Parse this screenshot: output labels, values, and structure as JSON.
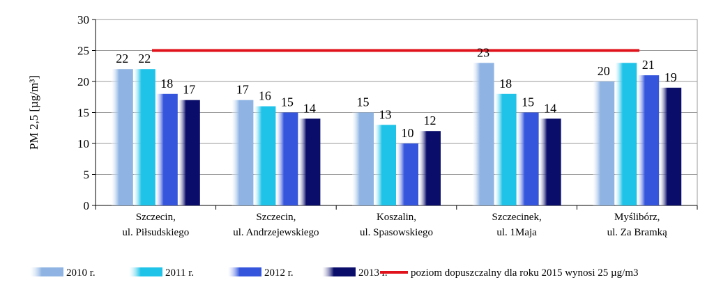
{
  "chart_data": {
    "type": "bar",
    "ylabel": "PM 2,5 [µg/m³]",
    "ylim": [
      0,
      30
    ],
    "yticks": [
      0,
      5,
      10,
      15,
      20,
      25,
      30
    ],
    "grid": true,
    "legend_position": "bottom",
    "categories": [
      [
        "Szczecin,",
        "ul. Piłsudskiego"
      ],
      [
        "Szczecin,",
        "ul. Andrzejewskiego"
      ],
      [
        "Koszalin,",
        "ul. Spasowskiego"
      ],
      [
        "Szczecinek,",
        "ul. 1Maja"
      ],
      [
        "Myślibórz,",
        "ul. Za Bramką"
      ]
    ],
    "series": [
      {
        "name": "2010 r.",
        "values": [
          22,
          17,
          15,
          23,
          20
        ],
        "color": "#8fb4e3"
      },
      {
        "name": "2011 r.",
        "values": [
          22,
          16,
          13,
          18,
          23
        ],
        "color": "#1fc3e8"
      },
      {
        "name": "2012 r.",
        "values": [
          18,
          15,
          10,
          15,
          21
        ],
        "color": "#3455dc"
      },
      {
        "name": "2013 r.",
        "values": [
          17,
          14,
          12,
          14,
          19
        ],
        "color": "#0a0d6a"
      }
    ],
    "data_labels": [
      [
        "22",
        "22",
        "18",
        "17"
      ],
      [
        "17",
        "16",
        "15",
        "14"
      ],
      [
        "15",
        "13",
        "10",
        "12"
      ],
      [
        "23",
        "18",
        "15",
        "14"
      ],
      [
        "20",
        "",
        "21",
        "19"
      ]
    ],
    "reference_line": {
      "value": 25,
      "label": "poziom dopuszczalny dla roku 2015 wynosi 25 µg/m3",
      "color": "#e0121b"
    }
  }
}
